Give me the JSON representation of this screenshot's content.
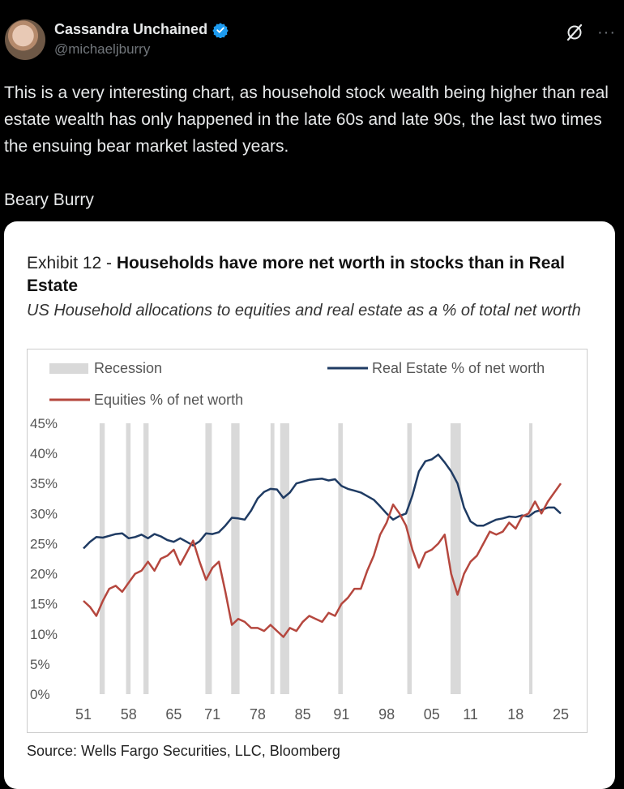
{
  "tweet": {
    "author_name": "Cassandra Unchained",
    "author_handle": "@michaeljburry",
    "text": "This is a very interesting chart, as household stock wealth being higher than real estate wealth has only happened in the late 60s and late 90s, the last two times the ensuing bear market lasted years.",
    "signature": "Beary Burry",
    "more_label": "···"
  },
  "exhibit": {
    "prefix": "Exhibit 12 - ",
    "title": "Households have more net worth in stocks than in Real Estate",
    "subtitle": "US Household allocations to equities and real estate as a % of total net worth",
    "source": "Source: Wells Fargo Securities, LLC, Bloomberg"
  },
  "colors": {
    "real_estate": "#1f3b63",
    "equities": "#b5473e",
    "recession": "#d9d9d9"
  },
  "chart_data": {
    "type": "line",
    "legend": [
      "Recession",
      "Real Estate % of net worth",
      "Equities % of net worth"
    ],
    "legend_position": "top",
    "ylim": [
      0,
      45
    ],
    "y_ticks": [
      0,
      5,
      10,
      15,
      20,
      25,
      30,
      35,
      40,
      45
    ],
    "y_tick_labels": [
      "0%",
      "5%",
      "10%",
      "15%",
      "20%",
      "25%",
      "30%",
      "35%",
      "40%",
      "45%"
    ],
    "xlim": [
      1951,
      2025
    ],
    "x_ticks": [
      1951,
      1958,
      1965,
      1971,
      1978,
      1985,
      1991,
      1998,
      2005,
      2011,
      2018,
      2025
    ],
    "x_tick_labels": [
      "51",
      "58",
      "65",
      "71",
      "78",
      "85",
      "91",
      "98",
      "05",
      "11",
      "18",
      "25"
    ],
    "recessions": [
      [
        1953.5,
        1954.3
      ],
      [
        1957.6,
        1958.3
      ],
      [
        1960.3,
        1961.1
      ],
      [
        1969.9,
        1970.9
      ],
      [
        1973.9,
        1975.2
      ],
      [
        1980.0,
        1980.6
      ],
      [
        1981.5,
        1982.9
      ],
      [
        1990.5,
        1991.2
      ],
      [
        2001.2,
        2001.9
      ],
      [
        2007.9,
        2009.5
      ],
      [
        2020.1,
        2020.4
      ]
    ],
    "series": [
      {
        "name": "Real Estate % of net worth",
        "color": "#1f3b63",
        "x": [
          1951,
          1952,
          1953,
          1954,
          1955,
          1956,
          1957,
          1958,
          1959,
          1960,
          1961,
          1962,
          1963,
          1964,
          1965,
          1966,
          1967,
          1968,
          1969,
          1970,
          1971,
          1972,
          1973,
          1974,
          1975,
          1976,
          1977,
          1978,
          1979,
          1980,
          1981,
          1982,
          1983,
          1984,
          1985,
          1986,
          1987,
          1988,
          1989,
          1990,
          1991,
          1992,
          1993,
          1994,
          1995,
          1996,
          1997,
          1998,
          1999,
          2000,
          2001,
          2002,
          2003,
          2004,
          2005,
          2006,
          2007,
          2008,
          2009,
          2010,
          2011,
          2012,
          2013,
          2014,
          2015,
          2016,
          2017,
          2018,
          2019,
          2020,
          2021,
          2022,
          2023,
          2024,
          2025
        ],
        "values": [
          24.2,
          25.3,
          26.1,
          26.0,
          26.3,
          26.6,
          26.7,
          25.9,
          26.1,
          26.5,
          25.9,
          26.6,
          26.2,
          25.6,
          25.3,
          25.9,
          25.3,
          24.7,
          25.4,
          26.7,
          26.6,
          26.9,
          28.0,
          29.3,
          29.2,
          29.0,
          30.5,
          32.5,
          33.6,
          34.1,
          34.0,
          32.6,
          33.5,
          35.0,
          35.3,
          35.6,
          35.7,
          35.8,
          35.5,
          35.7,
          34.6,
          34.1,
          33.8,
          33.5,
          32.9,
          32.3,
          31.2,
          30.0,
          29.0,
          29.6,
          30.0,
          33.0,
          37.0,
          38.7,
          39.0,
          39.8,
          38.5,
          37.0,
          35.0,
          31.0,
          28.7,
          28.0,
          28.0,
          28.5,
          29.0,
          29.2,
          29.5,
          29.4,
          29.7,
          29.5,
          30.3,
          30.6,
          31.0,
          31.0,
          30.0
        ]
      },
      {
        "name": "Equities % of net worth",
        "color": "#b5473e",
        "x": [
          1951,
          1952,
          1953,
          1954,
          1955,
          1956,
          1957,
          1958,
          1959,
          1960,
          1961,
          1962,
          1963,
          1964,
          1965,
          1966,
          1967,
          1968,
          1969,
          1970,
          1971,
          1972,
          1973,
          1974,
          1975,
          1976,
          1977,
          1978,
          1979,
          1980,
          1981,
          1982,
          1983,
          1984,
          1985,
          1986,
          1987,
          1988,
          1989,
          1990,
          1991,
          1992,
          1993,
          1994,
          1995,
          1996,
          1997,
          1998,
          1999,
          2000,
          2001,
          2002,
          2003,
          2004,
          2005,
          2006,
          2007,
          2008,
          2009,
          2010,
          2011,
          2012,
          2013,
          2014,
          2015,
          2016,
          2017,
          2018,
          2019,
          2020,
          2021,
          2022,
          2023,
          2024,
          2025
        ],
        "values": [
          15.5,
          14.5,
          13.0,
          15.5,
          17.5,
          18.0,
          17.0,
          18.5,
          20.0,
          20.5,
          22.0,
          20.5,
          22.5,
          23.0,
          24.0,
          21.5,
          23.5,
          25.5,
          22.0,
          19.0,
          21.0,
          22.0,
          17.0,
          11.5,
          12.5,
          12.0,
          11.0,
          11.0,
          10.5,
          11.5,
          10.5,
          9.5,
          11.0,
          10.5,
          12.0,
          13.0,
          12.5,
          12.0,
          13.5,
          13.0,
          15.0,
          16.0,
          17.5,
          17.5,
          20.5,
          23.0,
          26.5,
          28.5,
          31.5,
          30.0,
          28.0,
          24.0,
          21.0,
          23.5,
          24.0,
          25.0,
          26.5,
          20.0,
          16.5,
          20.0,
          22.0,
          23.0,
          25.0,
          27.0,
          26.5,
          27.0,
          28.5,
          27.5,
          29.5,
          30.0,
          32.0,
          30.0,
          32.0,
          33.5,
          35.0
        ]
      }
    ]
  }
}
